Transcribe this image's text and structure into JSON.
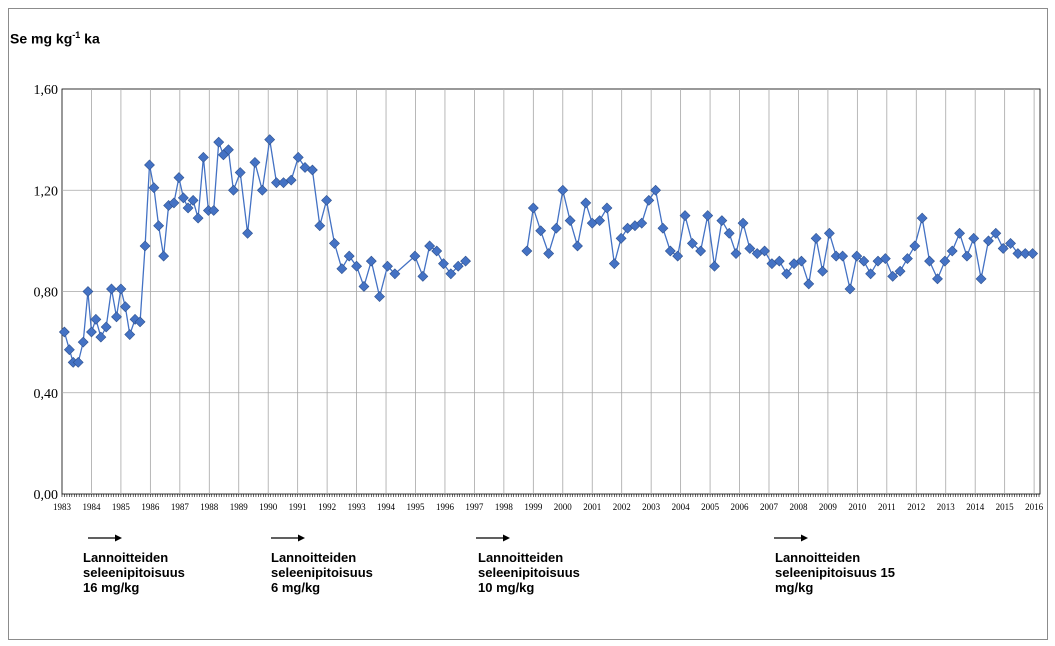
{
  "chart_data": {
    "type": "line",
    "ylabel": "Se mg kg",
    "ylabel_sup": "-1",
    "ylabel_suffix": " ka",
    "xlim": [
      1983,
      2016.2
    ],
    "ylim": [
      0,
      1.6
    ],
    "y_ticks": [
      "0,00",
      "0,40",
      "0,80",
      "1,20",
      "1,60"
    ],
    "y_tick_values": [
      0,
      0.4,
      0.8,
      1.2,
      1.6
    ],
    "x_ticks": [
      "1983",
      "1984",
      "1985",
      "1986",
      "1987",
      "1988",
      "1989",
      "1990",
      "1991",
      "1992",
      "1993",
      "1994",
      "1995",
      "1996",
      "1997",
      "1998",
      "1999",
      "2000",
      "2001",
      "2002",
      "2003",
      "2004",
      "2005",
      "2006",
      "2007",
      "2008",
      "2009",
      "2010",
      "2011",
      "2012",
      "2013",
      "2014",
      "2015",
      "2016"
    ],
    "grid": true,
    "marker": "diamond",
    "color": "#4472c4",
    "segments": [
      [
        [
          1983.08,
          0.64
        ],
        [
          1983.25,
          0.57
        ],
        [
          1983.38,
          0.52
        ],
        [
          1983.55,
          0.52
        ],
        [
          1983.72,
          0.6
        ],
        [
          1983.88,
          0.8
        ],
        [
          1984.0,
          0.64
        ],
        [
          1984.15,
          0.69
        ],
        [
          1984.32,
          0.62
        ],
        [
          1984.5,
          0.66
        ],
        [
          1984.68,
          0.81
        ],
        [
          1984.85,
          0.7
        ],
        [
          1985.0,
          0.81
        ],
        [
          1985.15,
          0.74
        ],
        [
          1985.3,
          0.63
        ],
        [
          1985.48,
          0.69
        ],
        [
          1985.65,
          0.68
        ],
        [
          1985.82,
          0.98
        ],
        [
          1985.97,
          1.3
        ],
        [
          1986.12,
          1.21
        ],
        [
          1986.28,
          1.06
        ],
        [
          1986.45,
          0.94
        ],
        [
          1986.62,
          1.14
        ],
        [
          1986.8,
          1.15
        ],
        [
          1986.97,
          1.25
        ],
        [
          1987.12,
          1.17
        ],
        [
          1987.28,
          1.13
        ],
        [
          1987.45,
          1.16
        ],
        [
          1987.62,
          1.09
        ],
        [
          1987.8,
          1.33
        ],
        [
          1987.97,
          1.12
        ],
        [
          1988.15,
          1.12
        ],
        [
          1988.32,
          1.39
        ],
        [
          1988.48,
          1.34
        ],
        [
          1988.65,
          1.36
        ],
        [
          1988.82,
          1.2
        ],
        [
          1989.05,
          1.27
        ],
        [
          1989.3,
          1.03
        ],
        [
          1989.55,
          1.31
        ],
        [
          1989.8,
          1.2
        ],
        [
          1990.05,
          1.4
        ],
        [
          1990.28,
          1.23
        ],
        [
          1990.52,
          1.23
        ],
        [
          1990.78,
          1.24
        ],
        [
          1991.02,
          1.33
        ],
        [
          1991.25,
          1.29
        ],
        [
          1991.5,
          1.28
        ],
        [
          1991.75,
          1.06
        ],
        [
          1991.98,
          1.16
        ],
        [
          1992.25,
          0.99
        ],
        [
          1992.5,
          0.89
        ],
        [
          1992.75,
          0.94
        ],
        [
          1993.0,
          0.9
        ],
        [
          1993.25,
          0.82
        ],
        [
          1993.5,
          0.92
        ],
        [
          1993.78,
          0.78
        ],
        [
          1994.05,
          0.9
        ],
        [
          1994.3,
          0.87
        ],
        [
          1994.98,
          0.94
        ],
        [
          1995.25,
          0.86
        ],
        [
          1995.48,
          0.98
        ],
        [
          1995.72,
          0.96
        ],
        [
          1995.95,
          0.91
        ],
        [
          1996.2,
          0.87
        ],
        [
          1996.45,
          0.9
        ],
        [
          1996.7,
          0.92
        ]
      ],
      [
        [
          1998.78,
          0.96
        ],
        [
          1999.0,
          1.13
        ],
        [
          1999.25,
          1.04
        ],
        [
          1999.52,
          0.95
        ],
        [
          1999.78,
          1.05
        ],
        [
          2000.0,
          1.2
        ],
        [
          2000.25,
          1.08
        ],
        [
          2000.5,
          0.98
        ],
        [
          2000.78,
          1.15
        ],
        [
          2001.0,
          1.07
        ],
        [
          2001.25,
          1.08
        ],
        [
          2001.5,
          1.13
        ],
        [
          2001.75,
          0.91
        ],
        [
          2001.98,
          1.01
        ],
        [
          2002.2,
          1.05
        ],
        [
          2002.45,
          1.06
        ],
        [
          2002.68,
          1.07
        ],
        [
          2002.92,
          1.16
        ],
        [
          2003.15,
          1.2
        ],
        [
          2003.4,
          1.05
        ],
        [
          2003.65,
          0.96
        ],
        [
          2003.9,
          0.94
        ],
        [
          2004.15,
          1.1
        ],
        [
          2004.4,
          0.99
        ],
        [
          2004.68,
          0.96
        ],
        [
          2004.92,
          1.1
        ],
        [
          2005.15,
          0.9
        ],
        [
          2005.4,
          1.08
        ],
        [
          2005.65,
          1.03
        ],
        [
          2005.88,
          0.95
        ],
        [
          2006.12,
          1.07
        ],
        [
          2006.35,
          0.97
        ],
        [
          2006.6,
          0.95
        ],
        [
          2006.85,
          0.96
        ],
        [
          2007.1,
          0.91
        ],
        [
          2007.35,
          0.92
        ],
        [
          2007.6,
          0.87
        ],
        [
          2007.85,
          0.91
        ],
        [
          2008.1,
          0.92
        ],
        [
          2008.35,
          0.83
        ],
        [
          2008.6,
          1.01
        ],
        [
          2008.82,
          0.88
        ],
        [
          2009.05,
          1.03
        ],
        [
          2009.28,
          0.94
        ],
        [
          2009.5,
          0.94
        ],
        [
          2009.75,
          0.81
        ],
        [
          2009.98,
          0.94
        ],
        [
          2010.22,
          0.92
        ],
        [
          2010.45,
          0.87
        ],
        [
          2010.7,
          0.92
        ],
        [
          2010.95,
          0.93
        ],
        [
          2011.2,
          0.86
        ],
        [
          2011.45,
          0.88
        ],
        [
          2011.7,
          0.93
        ],
        [
          2011.95,
          0.98
        ],
        [
          2012.2,
          1.09
        ],
        [
          2012.45,
          0.92
        ],
        [
          2012.72,
          0.85
        ],
        [
          2012.97,
          0.92
        ],
        [
          2013.22,
          0.96
        ],
        [
          2013.47,
          1.03
        ],
        [
          2013.72,
          0.94
        ],
        [
          2013.95,
          1.01
        ],
        [
          2014.2,
          0.85
        ],
        [
          2014.45,
          1.0
        ],
        [
          2014.7,
          1.03
        ],
        [
          2014.95,
          0.97
        ],
        [
          2015.2,
          0.99
        ],
        [
          2015.45,
          0.95
        ],
        [
          2015.7,
          0.95
        ],
        [
          2015.95,
          0.95
        ]
      ]
    ]
  },
  "annotations": [
    {
      "text": "Lannoitteiden\nseleenipitoisuus\n16 mg/kg"
    },
    {
      "text": "Lannoitteiden\nseleenipitoisuus\n6 mg/kg"
    },
    {
      "text": "Lannoitteiden\nseleenipitoisuus\n10 mg/kg"
    },
    {
      "text": "Lannoitteiden\nseleenipitoisuus 15\nmg/kg"
    }
  ]
}
